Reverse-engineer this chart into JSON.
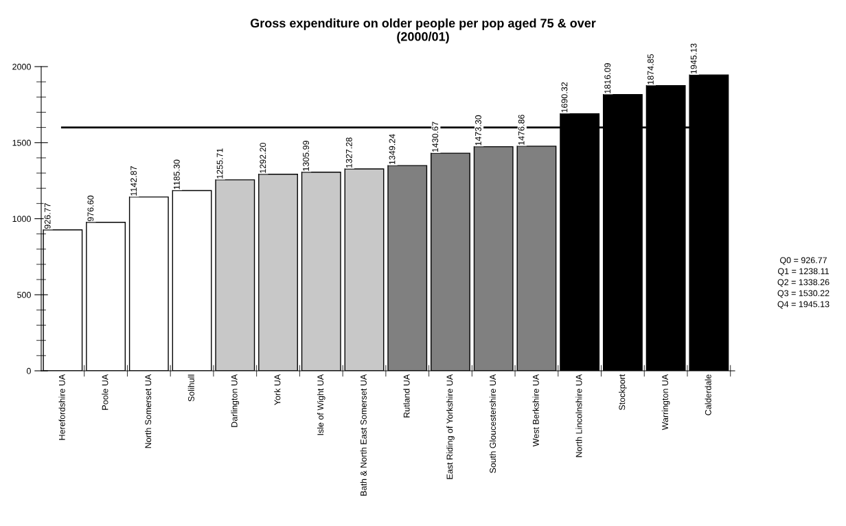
{
  "chart_data": {
    "type": "bar",
    "title": "Gross expenditure on older people per pop aged 75 & over\n(2000/01)",
    "categories": [
      "Herefordshire UA",
      "Poole UA",
      "North Somerset UA",
      "Solihull",
      "Darlington UA",
      "York UA",
      "Isle of Wight UA",
      "Bath & North East Somerset UA",
      "Rutland UA",
      "East Riding of Yorkshire UA",
      "South Gloucestershire UA",
      "West Berkshire UA",
      "North Lincolnshire UA",
      "Stockport",
      "Warrington UA",
      "Calderdale"
    ],
    "values": [
      926.77,
      976.6,
      1142.87,
      1185.3,
      1255.71,
      1292.2,
      1305.99,
      1327.28,
      1349.24,
      1430.67,
      1473.3,
      1476.86,
      1690.32,
      1816.09,
      1874.85,
      1945.13
    ],
    "colors": [
      "#ffffff",
      "#ffffff",
      "#ffffff",
      "#ffffff",
      "#c8c8c8",
      "#c8c8c8",
      "#c8c8c8",
      "#c8c8c8",
      "#808080",
      "#808080",
      "#808080",
      "#808080",
      "#000000",
      "#000000",
      "#000000",
      "#000000"
    ],
    "value_labels": [
      "926.77",
      "976.60",
      "1142.87",
      "1185.30",
      "1255.71",
      "1292.20",
      "1305.99",
      "1327.28",
      "1349.24",
      "1430.67",
      "1473.30",
      "1476.86",
      "1690.32",
      "1816.09",
      "1874.85",
      "1945.13"
    ],
    "ylim": [
      0,
      2000
    ],
    "yticks": [
      0,
      500,
      1000,
      1500,
      2000
    ],
    "ref_lines": [
      {
        "axis": "y",
        "value": 1600,
        "color": "#000000"
      }
    ],
    "annotations": [
      "Q0 = 926.77",
      "Q1 = 1238.11",
      "Q2 = 1338.26",
      "Q3 = 1530.22",
      "Q4 = 1945.13"
    ],
    "grid": false,
    "legend": false
  }
}
